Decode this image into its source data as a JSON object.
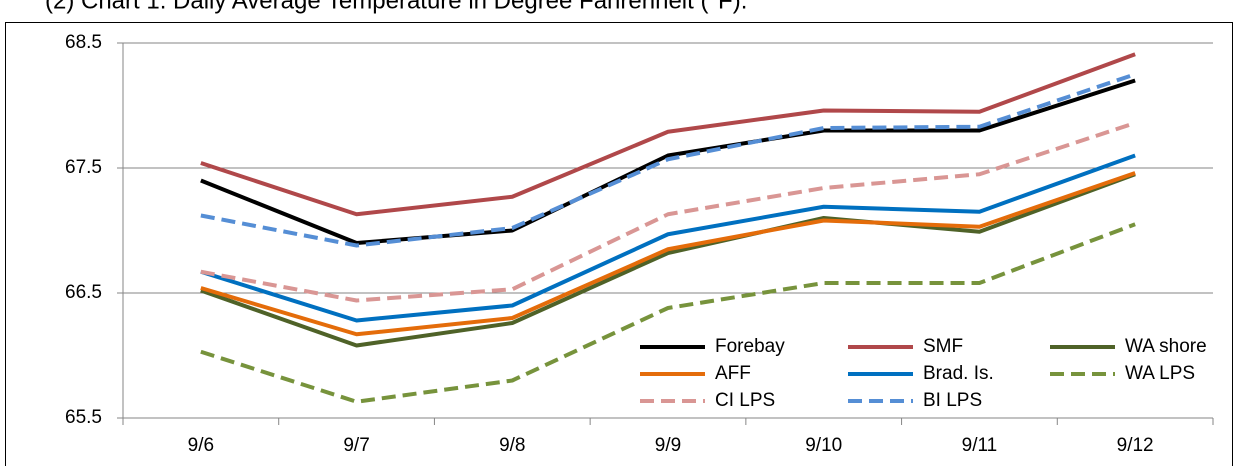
{
  "chart_data": {
    "type": "line",
    "title": "(2) Chart 1. Daily Average Temperature in Degree Fahrenheit (°F).",
    "categories": [
      "9/6",
      "9/7",
      "9/8",
      "9/9",
      "9/10",
      "9/11",
      "9/12"
    ],
    "ylim": [
      65.5,
      68.5
    ],
    "yticks": [
      65.5,
      66.5,
      67.5,
      68.5
    ],
    "grid": true,
    "legend": "lower right",
    "series": [
      {
        "name": "Forebay",
        "color": "#000000",
        "dashed": false,
        "values": [
          67.4,
          66.9,
          67.0,
          67.6,
          67.8,
          67.8,
          68.2
        ]
      },
      {
        "name": "SMF",
        "color": "#b0484a",
        "dashed": false,
        "values": [
          67.54,
          67.13,
          67.27,
          67.79,
          67.96,
          67.95,
          68.41
        ]
      },
      {
        "name": "WA shore",
        "color": "#4f6228",
        "dashed": false,
        "values": [
          66.52,
          66.08,
          66.26,
          66.82,
          67.1,
          66.99,
          67.45
        ]
      },
      {
        "name": "AFF",
        "color": "#e46c0a",
        "dashed": false,
        "values": [
          66.54,
          66.17,
          66.3,
          66.85,
          67.08,
          67.03,
          67.46
        ]
      },
      {
        "name": "Brad. Is.",
        "color": "#0070c0",
        "dashed": false,
        "values": [
          66.67,
          66.28,
          66.4,
          66.97,
          67.19,
          67.15,
          67.6
        ]
      },
      {
        "name": "WA LPS",
        "color": "#77933c",
        "dashed": true,
        "values": [
          66.03,
          65.63,
          65.8,
          66.38,
          66.58,
          66.58,
          67.05
        ]
      },
      {
        "name": "CI LPS",
        "color": "#d99694",
        "dashed": true,
        "values": [
          66.67,
          66.44,
          66.53,
          67.13,
          67.34,
          67.45,
          67.86
        ]
      },
      {
        "name": "BI LPS",
        "color": "#558ed5",
        "dashed": true,
        "values": [
          67.12,
          66.88,
          67.02,
          67.57,
          67.82,
          67.83,
          68.25
        ]
      }
    ]
  }
}
